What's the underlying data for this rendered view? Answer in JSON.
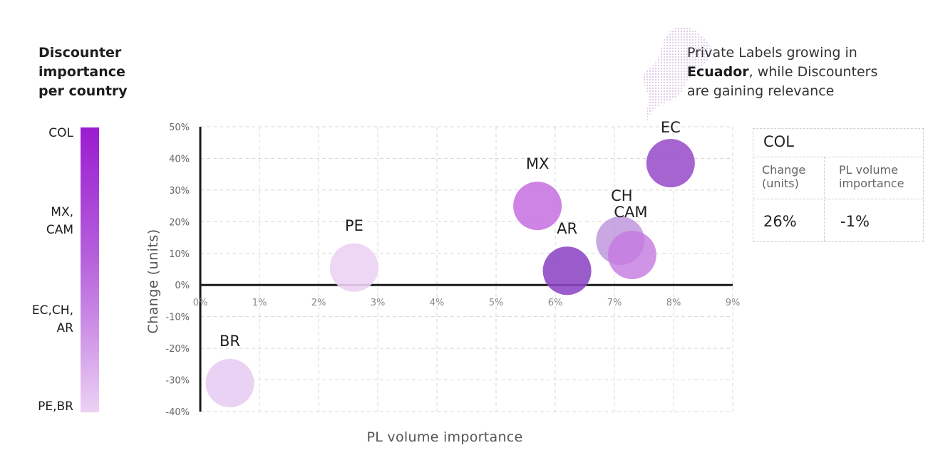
{
  "legend": {
    "title_lines": [
      "Discounter",
      "importance",
      "per country"
    ],
    "levels": [
      {
        "lines": [
          "COL"
        ]
      },
      {
        "lines": [
          "MX,",
          "CAM"
        ]
      },
      {
        "lines": [
          "EC,CH,",
          "AR"
        ]
      },
      {
        "lines": [
          "PE,BR"
        ]
      }
    ],
    "gradient_colors": [
      "#9b1bd0",
      "#b55fdc",
      "#cc8fe6",
      "#ecd2f4"
    ]
  },
  "annotation": {
    "line1": "Private Labels growing in",
    "bold": "Ecuador",
    "line2_rest": ", while Discounters",
    "line3": "are gaining relevance",
    "map_icon": "ecuador-map-icon"
  },
  "info_box": {
    "title": "COL",
    "col1_header_lines": [
      "Change",
      "(units)"
    ],
    "col2_header_lines": [
      "PL volume",
      "importance"
    ],
    "col1_value": "26%",
    "col2_value": "-1%"
  },
  "chart_data": {
    "type": "scatter",
    "title": "",
    "xlabel": "PL volume importance",
    "ylabel": "Change (units)",
    "xlim": [
      0,
      9
    ],
    "ylim": [
      -40,
      50
    ],
    "x_ticks": [
      0,
      1,
      2,
      3,
      4,
      5,
      6,
      7,
      8,
      9
    ],
    "x_tick_labels": [
      "0%",
      "1%",
      "2%",
      "3%",
      "4%",
      "5%",
      "6%",
      "7%",
      "8%",
      "9%"
    ],
    "y_ticks": [
      50,
      40,
      30,
      20,
      10,
      0,
      -10,
      -20,
      -30,
      -40
    ],
    "y_tick_labels": [
      "50%",
      "40%",
      "30%",
      "20%",
      "10%",
      "0%",
      "-10%",
      "-20%",
      "-30%",
      "-40%"
    ],
    "grid": true,
    "points": [
      {
        "label": "BR",
        "x": 0.5,
        "y": -31,
        "color": "#e8cdf3",
        "opacity": 0.9
      },
      {
        "label": "PE",
        "x": 2.6,
        "y": 5.5,
        "color": "#ecd2f4",
        "opacity": 0.9
      },
      {
        "label": "MX",
        "x": 5.7,
        "y": 25,
        "color": "#c66fe0",
        "opacity": 0.85
      },
      {
        "label": "AR",
        "x": 6.2,
        "y": 4.5,
        "color": "#8d45c4",
        "opacity": 0.88
      },
      {
        "label": "CH",
        "x": 7.1,
        "y": 14,
        "color": "#b58ad8",
        "opacity": 0.75
      },
      {
        "label": "CAM",
        "x": 7.3,
        "y": 9.5,
        "color": "#c479e0",
        "opacity": 0.8
      },
      {
        "label": "EC",
        "x": 7.95,
        "y": 38.5,
        "color": "#9a4fcb",
        "opacity": 0.88
      }
    ]
  }
}
